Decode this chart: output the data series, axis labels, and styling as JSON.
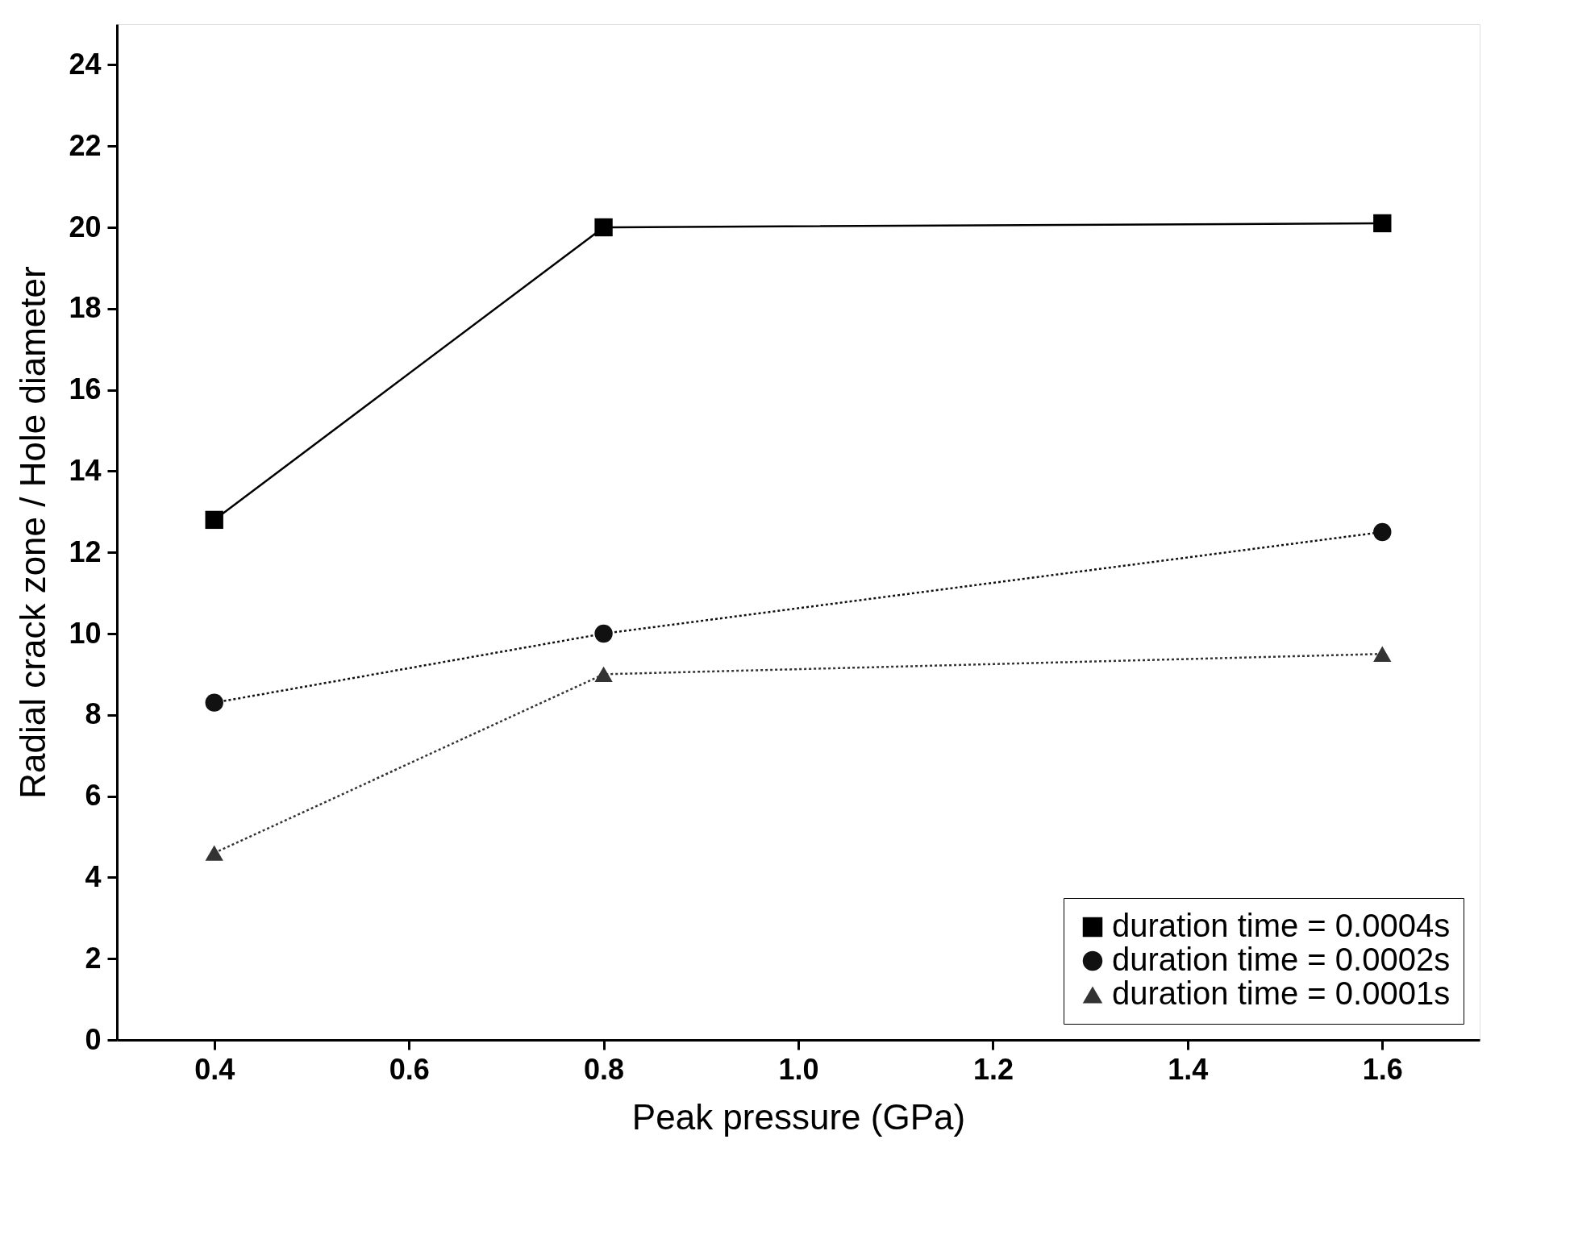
{
  "chart_data": {
    "type": "line",
    "xlabel": "Peak pressure (GPa)",
    "ylabel": "Radial crack zone / Hole diameter",
    "x": [
      0.4,
      0.8,
      1.6
    ],
    "series": [
      {
        "name": "duration time = 0.0004s",
        "color": "#000000",
        "values": [
          12.8,
          20.0,
          20.1
        ],
        "marker": "square",
        "line_style": "solid"
      },
      {
        "name": "duration time = 0.0002s",
        "color": "#111111",
        "values": [
          8.3,
          10.0,
          12.5
        ],
        "marker": "circle",
        "line_style": "dotted"
      },
      {
        "name": "duration time = 0.0001s",
        "color": "#333333",
        "values": [
          4.6,
          9.0,
          9.5
        ],
        "marker": "triangle",
        "line_style": "dotted"
      }
    ],
    "xlim": [
      0.3,
      1.7
    ],
    "xticks": [
      0.4,
      0.6,
      0.8,
      {
        "value": 1,
        "label": "1.0"
      },
      1.2,
      1.4,
      1.6
    ],
    "ylim": [
      0,
      25
    ],
    "yticks": [
      0,
      2,
      4,
      6,
      8,
      10,
      12,
      14,
      16,
      18,
      20,
      22,
      24
    ],
    "grid": false,
    "legend": "bottom right"
  }
}
